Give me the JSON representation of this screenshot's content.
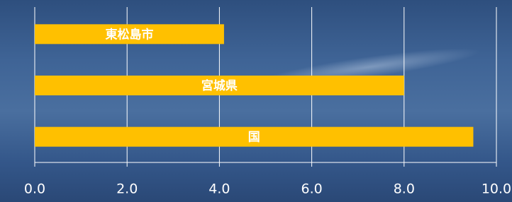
{
  "chart_data": {
    "type": "bar",
    "orientation": "horizontal",
    "categories": [
      "東松島市",
      "宮城県",
      "国"
    ],
    "values": [
      4.1,
      8.0,
      9.5
    ],
    "color": "#ffc000",
    "xlim": [
      0,
      10
    ],
    "xticks": [
      {
        "value": 0,
        "label": "0.0"
      },
      {
        "value": 2,
        "label": "2.0"
      },
      {
        "value": 4,
        "label": "4.0"
      },
      {
        "value": 6,
        "label": "6.0"
      },
      {
        "value": 8,
        "label": "8.0"
      },
      {
        "value": 10,
        "label": "10.0"
      }
    ],
    "grid": true
  }
}
